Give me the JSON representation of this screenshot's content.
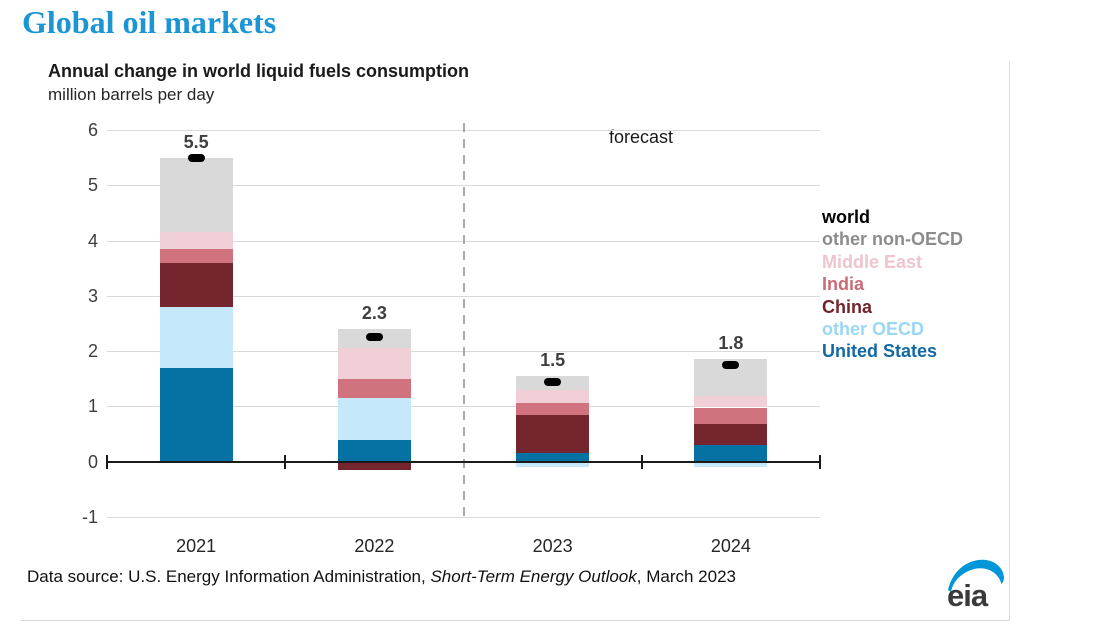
{
  "page_title": "Global oil markets",
  "chart_data": {
    "type": "bar",
    "stacked": true,
    "title": "Annual change in world liquid fuels consumption",
    "subtitle": "million barrels per day",
    "categories": [
      "2021",
      "2022",
      "2023",
      "2024"
    ],
    "series": [
      {
        "name": "United States",
        "color": "#0672a3",
        "values": [
          1.7,
          0.4,
          0.15,
          0.3
        ]
      },
      {
        "name": "other OECD",
        "color": "#c5e9fb",
        "values": [
          1.1,
          0.75,
          -0.1,
          -0.1
        ]
      },
      {
        "name": "China",
        "color": "#75252e",
        "values": [
          0.8,
          -0.15,
          0.7,
          0.38
        ]
      },
      {
        "name": "India",
        "color": "#d0737f",
        "values": [
          0.25,
          0.35,
          0.22,
          0.3
        ]
      },
      {
        "name": "Middle East",
        "color": "#f0cfd6",
        "values": [
          0.3,
          0.55,
          0.23,
          0.2
        ]
      },
      {
        "name": "other non-OECD",
        "color": "#d9d9d9",
        "values": [
          1.35,
          0.35,
          0.25,
          0.67
        ]
      }
    ],
    "world_series": {
      "name": "world",
      "color": "#000000",
      "totals": [
        5.5,
        2.25,
        1.45,
        1.75
      ]
    },
    "bar_value_labels": [
      "5.5",
      "2.3",
      "1.5",
      "1.8"
    ],
    "y_ticks": [
      6,
      5,
      4,
      3,
      2,
      1,
      0,
      -1
    ],
    "ylim": [
      -1,
      6
    ],
    "grid": true,
    "forecast": {
      "label": "forecast",
      "divider_between": [
        "2022",
        "2023"
      ]
    },
    "legend_position": "right"
  },
  "legend": {
    "items": [
      {
        "label": "world",
        "color": "#000000"
      },
      {
        "label": "other non-OECD",
        "color": "#8c8c8c"
      },
      {
        "label": "Middle East",
        "color": "#eec4cd"
      },
      {
        "label": "India",
        "color": "#cb6b77"
      },
      {
        "label": "China",
        "color": "#72242d"
      },
      {
        "label": "other OECD",
        "color": "#9bd7f5"
      },
      {
        "label": "United States",
        "color": "#1269a4"
      }
    ]
  },
  "footer": {
    "prefix": "Data source: U.S. Energy Information Administration, ",
    "publication": "Short-Term Energy Outlook",
    "suffix": ", March 2023"
  },
  "logo": {
    "text": "eia",
    "swoosh_color": "#0096d7",
    "text_color": "#3a3a3a"
  }
}
